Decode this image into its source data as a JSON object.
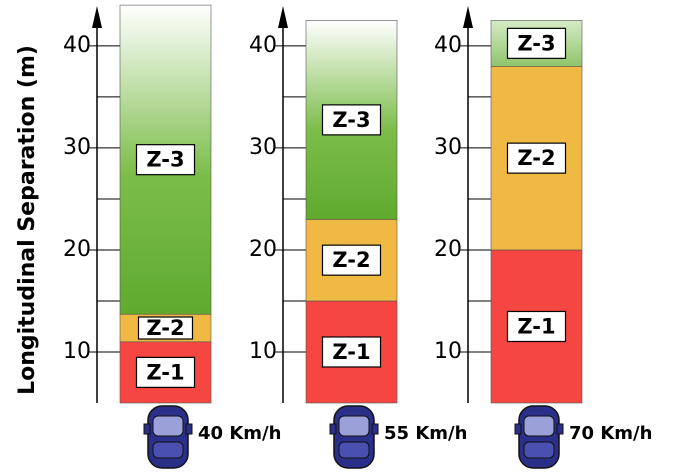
{
  "chart_data": {
    "type": "stacked-bar",
    "y_label": "Longitudinal Separation (m)",
    "categories": [
      "40 Km/h",
      "55 Km/h",
      "70 Km/h"
    ],
    "series": [
      {
        "name": "Z-1",
        "color": "#f54642",
        "values": [
          6,
          10,
          15
        ]
      },
      {
        "name": "Z-2",
        "color": "#efb943",
        "values": [
          2.7,
          8,
          18
        ]
      },
      {
        "name": "Z-3",
        "color": "#5faa2e",
        "values": [
          30.3,
          19.5,
          4.5
        ]
      }
    ],
    "ylim": [
      5,
      44.5
    ],
    "yticks": [
      10,
      20,
      30,
      40
    ],
    "minor_yticks": [
      15,
      25,
      35
    ]
  }
}
